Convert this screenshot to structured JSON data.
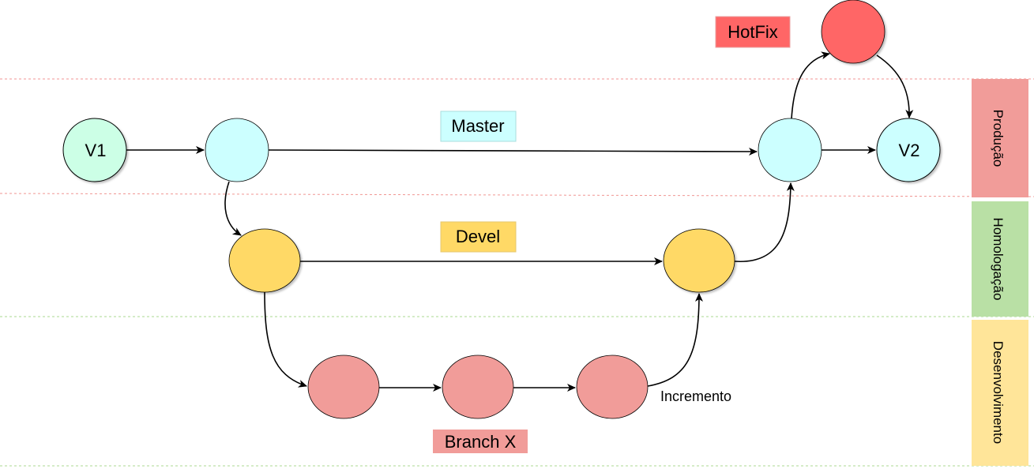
{
  "colors": {
    "master": "#ccffff",
    "devel": "#ffd966",
    "branch": "#f19c99",
    "hotfix": "#ff6666",
    "v1": "#ccffe6",
    "producao": "#f19c99",
    "homologacao": "#b9e0a5",
    "desenvolvimento": "#ffe599",
    "prod_line": "#ea6b66",
    "dev_line": "#97d077"
  },
  "labels": {
    "master": "Master",
    "devel": "Devel",
    "branch": "Branch X",
    "hotfix": "HotFix",
    "incremento": "Incremento"
  },
  "nodes": {
    "v1": "V1",
    "v2": "V2"
  },
  "environments": {
    "producao": "Produção",
    "homologacao": "Homologação",
    "desenvolvimento": "Desenvolvimento"
  }
}
